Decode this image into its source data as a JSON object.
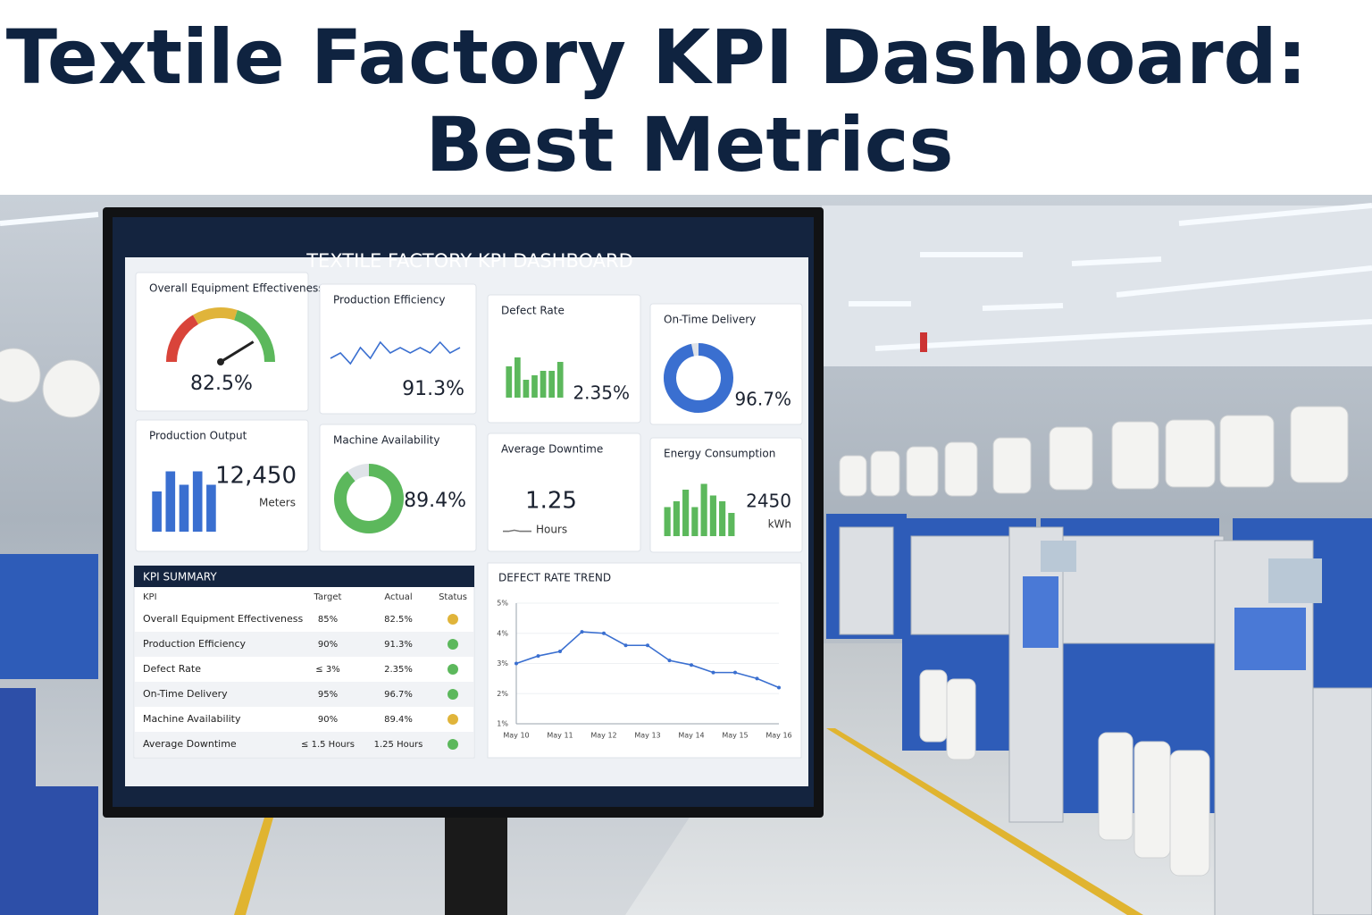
{
  "header": {
    "title_lines": [
      "Textile Factory KPI Dashboard:",
      "Best Metrics"
    ]
  },
  "dashboard": {
    "title": "TEXTILE FACTORY KPI DASHBOARD",
    "cards": [
      {
        "title": "Overall Equipment Effectiveness",
        "value": "82.5%",
        "chart": {
          "type": "gauge",
          "lim": [
            0,
            100
          ],
          "values": [
            82.5
          ]
        }
      },
      {
        "title": "Production Efficiency",
        "value": "91.3%",
        "chart": {
          "type": "line",
          "lim": [
            0,
            10
          ],
          "color": "#3a6fd0",
          "values": [
            4,
            5,
            3,
            6,
            4,
            7,
            5,
            6,
            5,
            6,
            5,
            7,
            5,
            6
          ]
        }
      },
      {
        "title": "Defect Rate",
        "value": "2.35%",
        "chart": {
          "type": "bar",
          "lim": [
            0,
            10
          ],
          "color": "#5cb85c",
          "values": [
            7,
            9,
            4,
            5,
            6,
            6,
            8
          ]
        }
      },
      {
        "title": "On-Time Delivery",
        "value": "96.7%",
        "chart": {
          "type": "donut",
          "lim": [
            0,
            100
          ],
          "color": "#3a6fd0",
          "values": [
            96.7
          ]
        }
      },
      {
        "title": "Production Output",
        "value": "12,450",
        "unit": "Meters",
        "chart": {
          "type": "bar",
          "lim": [
            0,
            10
          ],
          "color": "#3a6fd0",
          "values": [
            6,
            9,
            7,
            9,
            7
          ]
        }
      },
      {
        "title": "Machine Availability",
        "value": "89.4%",
        "chart": {
          "type": "donut",
          "lim": [
            0,
            100
          ],
          "color": "#5cb85c",
          "values": [
            89.4
          ]
        }
      },
      {
        "title": "Average Downtime",
        "value": "1.25",
        "unit": "Hours",
        "chart": {
          "type": "line",
          "lim": [
            0,
            10
          ],
          "color": "#777777",
          "values": [
            2,
            2,
            3,
            2,
            2,
            2
          ]
        }
      },
      {
        "title": "Energy Consumption",
        "value": "2450",
        "unit": "kWh",
        "chart": {
          "type": "bar",
          "lim": [
            0,
            10
          ],
          "color": "#5cb85c",
          "values": [
            5,
            6,
            8,
            5,
            9,
            7,
            6,
            4
          ]
        }
      }
    ],
    "kpi_summary": {
      "title": "KPI SUMMARY",
      "columns": [
        "KPI",
        "Target",
        "Actual",
        "Status"
      ],
      "rows": [
        {
          "kpi": "Overall Equipment Effectiveness",
          "target": "85%",
          "actual": "82.5%",
          "status": "#e0b43a"
        },
        {
          "kpi": "Production Efficiency",
          "target": "90%",
          "actual": "91.3%",
          "status": "#5cb85c"
        },
        {
          "kpi": "Defect Rate",
          "target": "≤ 3%",
          "actual": "2.35%",
          "status": "#5cb85c"
        },
        {
          "kpi": "On-Time Delivery",
          "target": "95%",
          "actual": "96.7%",
          "status": "#5cb85c"
        },
        {
          "kpi": "Machine Availability",
          "target": "90%",
          "actual": "89.4%",
          "status": "#e0b43a"
        },
        {
          "kpi": "Average Downtime",
          "target": "≤ 1.5 Hours",
          "actual": "1.25 Hours",
          "status": "#5cb85c"
        }
      ]
    },
    "defect_trend": {
      "type": "line",
      "title": "DEFECT RATE TREND",
      "color": "#3a6fd0",
      "categories": [
        "May 10",
        null,
        "May 11",
        null,
        "May 12",
        null,
        "May 13",
        null,
        "May 14",
        null,
        "May 15",
        null,
        "May 16"
      ],
      "values": [
        3.0,
        3.25,
        3.4,
        4.05,
        4.0,
        3.6,
        3.6,
        3.1,
        2.95,
        2.7,
        2.7,
        2.5,
        2.2
      ],
      "ylim": [
        1,
        5
      ],
      "yticks": [
        {
          "value": 1,
          "label": "1%"
        },
        {
          "value": 2,
          "label": "2%"
        },
        {
          "value": 3,
          "label": "3%"
        },
        {
          "value": 4,
          "label": "4%"
        },
        {
          "value": 5,
          "label": "5%"
        }
      ]
    }
  }
}
